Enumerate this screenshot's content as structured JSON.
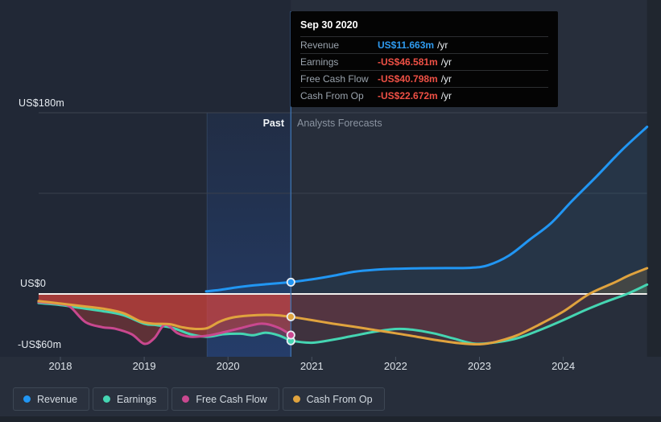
{
  "tooltip": {
    "date": "Sep 30 2020",
    "rows": [
      {
        "label": "Revenue",
        "value": "US$11.663m",
        "suffix": "/yr",
        "color": "#2f9bf0"
      },
      {
        "label": "Earnings",
        "value": "-US$46.581m",
        "suffix": "/yr",
        "color": "#ee5045"
      },
      {
        "label": "Free Cash Flow",
        "value": "-US$40.798m",
        "suffix": "/yr",
        "color": "#ee5045"
      },
      {
        "label": "Cash From Op",
        "value": "-US$22.672m",
        "suffix": "/yr",
        "color": "#ee5045"
      }
    ]
  },
  "sections": {
    "past": "Past",
    "forecast": "Analysts Forecasts"
  },
  "axis": {
    "y_top": "US$180m",
    "y_zero": "US$0",
    "y_bottom": "-US$60m",
    "years": [
      "2018",
      "2019",
      "2020",
      "2021",
      "2022",
      "2023",
      "2024"
    ]
  },
  "legend": {
    "items": [
      {
        "label": "Revenue",
        "color": "#2196f3"
      },
      {
        "label": "Earnings",
        "color": "#45d5b2"
      },
      {
        "label": "Free Cash Flow",
        "color": "#c9488f"
      },
      {
        "label": "Cash From Op",
        "color": "#e0a33e"
      }
    ]
  },
  "chart_data": {
    "type": "line",
    "units": "US$ millions per year",
    "ylim": [
      -60,
      180
    ],
    "xlim": [
      2017.74,
      2025.0
    ],
    "grid_values": [
      180,
      100,
      0
    ],
    "divider_year": 2020.75,
    "band": {
      "from": 2019.75,
      "to": 2020.75
    },
    "negative_fill": "#e0443c",
    "forecast_negative_fill": "#d75055",
    "series": [
      {
        "name": "Earnings",
        "color": "#45d5b2",
        "past": [
          [
            2017.74,
            -9.0
          ],
          [
            2018.0,
            -11.0
          ],
          [
            2018.25,
            -14.0
          ],
          [
            2018.5,
            -17.0
          ],
          [
            2018.75,
            -21.0
          ],
          [
            2019.0,
            -29.5
          ],
          [
            2019.15,
            -31.0
          ],
          [
            2019.35,
            -34.0
          ],
          [
            2019.55,
            -40.0
          ],
          [
            2019.75,
            -42.5
          ],
          [
            2019.95,
            -40.0
          ],
          [
            2020.15,
            -39.5
          ],
          [
            2020.3,
            -41.0
          ],
          [
            2020.45,
            -38.5
          ],
          [
            2020.6,
            -41.0
          ],
          [
            2020.75,
            -46.581
          ]
        ],
        "forecast": [
          [
            2020.75,
            -46.581
          ],
          [
            2021.0,
            -48.5
          ],
          [
            2021.25,
            -45.5
          ],
          [
            2021.5,
            -41.5
          ],
          [
            2021.75,
            -37.5
          ],
          [
            2022.0,
            -34.8
          ],
          [
            2022.2,
            -35.5
          ],
          [
            2022.45,
            -39.0
          ],
          [
            2022.7,
            -44.5
          ],
          [
            2022.95,
            -49.5
          ],
          [
            2023.2,
            -48.0
          ],
          [
            2023.45,
            -44.0
          ],
          [
            2023.7,
            -36.5
          ],
          [
            2024.0,
            -26.0
          ],
          [
            2024.25,
            -16.5
          ],
          [
            2024.5,
            -8.0
          ],
          [
            2024.76,
            0.0
          ],
          [
            2025.0,
            9.3
          ]
        ]
      },
      {
        "name": "Free Cash Flow",
        "color": "#c9488f",
        "past": [
          [
            2017.74,
            -8.0
          ],
          [
            2018.0,
            -10.0
          ],
          [
            2018.12,
            -13.0
          ],
          [
            2018.3,
            -28.0
          ],
          [
            2018.5,
            -33.0
          ],
          [
            2018.65,
            -34.5
          ],
          [
            2018.85,
            -40.0
          ],
          [
            2019.0,
            -49.5
          ],
          [
            2019.12,
            -44.0
          ],
          [
            2019.25,
            -30.5
          ],
          [
            2019.4,
            -39.0
          ],
          [
            2019.55,
            -42.5
          ],
          [
            2019.75,
            -41.5
          ],
          [
            2019.95,
            -38.0
          ],
          [
            2020.15,
            -34.0
          ],
          [
            2020.4,
            -29.5
          ],
          [
            2020.6,
            -33.5
          ],
          [
            2020.75,
            -40.798
          ]
        ],
        "forecast": []
      },
      {
        "name": "Cash From Op",
        "color": "#e0a33e",
        "past": [
          [
            2017.74,
            -7.0
          ],
          [
            2018.0,
            -9.5
          ],
          [
            2018.25,
            -12.0
          ],
          [
            2018.5,
            -14.5
          ],
          [
            2018.75,
            -19.0
          ],
          [
            2018.95,
            -27.0
          ],
          [
            2019.1,
            -29.5
          ],
          [
            2019.3,
            -30.0
          ],
          [
            2019.45,
            -33.0
          ],
          [
            2019.6,
            -34.7
          ],
          [
            2019.75,
            -34.0
          ],
          [
            2019.9,
            -27.5
          ],
          [
            2020.05,
            -23.5
          ],
          [
            2020.25,
            -21.5
          ],
          [
            2020.45,
            -20.8
          ],
          [
            2020.6,
            -21.3
          ],
          [
            2020.75,
            -22.672
          ]
        ],
        "forecast": [
          [
            2020.75,
            -22.672
          ],
          [
            2021.0,
            -26.0
          ],
          [
            2021.25,
            -29.5
          ],
          [
            2021.5,
            -32.5
          ],
          [
            2021.75,
            -35.8
          ],
          [
            2022.0,
            -39.0
          ],
          [
            2022.25,
            -42.5
          ],
          [
            2022.5,
            -46.0
          ],
          [
            2022.75,
            -48.8
          ],
          [
            2023.0,
            -50.0
          ],
          [
            2023.2,
            -47.5
          ],
          [
            2023.45,
            -41.0
          ],
          [
            2023.7,
            -31.0
          ],
          [
            2024.0,
            -17.5
          ],
          [
            2024.31,
            0.0
          ],
          [
            2024.6,
            11.0
          ],
          [
            2024.8,
            19.0
          ],
          [
            2025.0,
            25.6
          ]
        ]
      },
      {
        "name": "Revenue",
        "color": "#2196f3",
        "past": [
          [
            2019.74,
            2.6
          ],
          [
            2019.9,
            4.0
          ],
          [
            2020.1,
            6.5
          ],
          [
            2020.3,
            8.5
          ],
          [
            2020.5,
            10.0
          ],
          [
            2020.75,
            11.663
          ]
        ],
        "forecast": [
          [
            2020.75,
            11.663
          ],
          [
            2021.0,
            14.5
          ],
          [
            2021.25,
            18.0
          ],
          [
            2021.5,
            22.0
          ],
          [
            2021.75,
            24.0
          ],
          [
            2022.0,
            25.0
          ],
          [
            2022.3,
            25.5
          ],
          [
            2022.6,
            25.7
          ],
          [
            2022.9,
            26.0
          ],
          [
            2023.1,
            28.5
          ],
          [
            2023.35,
            38.0
          ],
          [
            2023.6,
            54.0
          ],
          [
            2023.85,
            70.0
          ],
          [
            2024.1,
            92.0
          ],
          [
            2024.4,
            117.0
          ],
          [
            2024.7,
            143.0
          ],
          [
            2025.0,
            166.0
          ]
        ]
      }
    ]
  }
}
